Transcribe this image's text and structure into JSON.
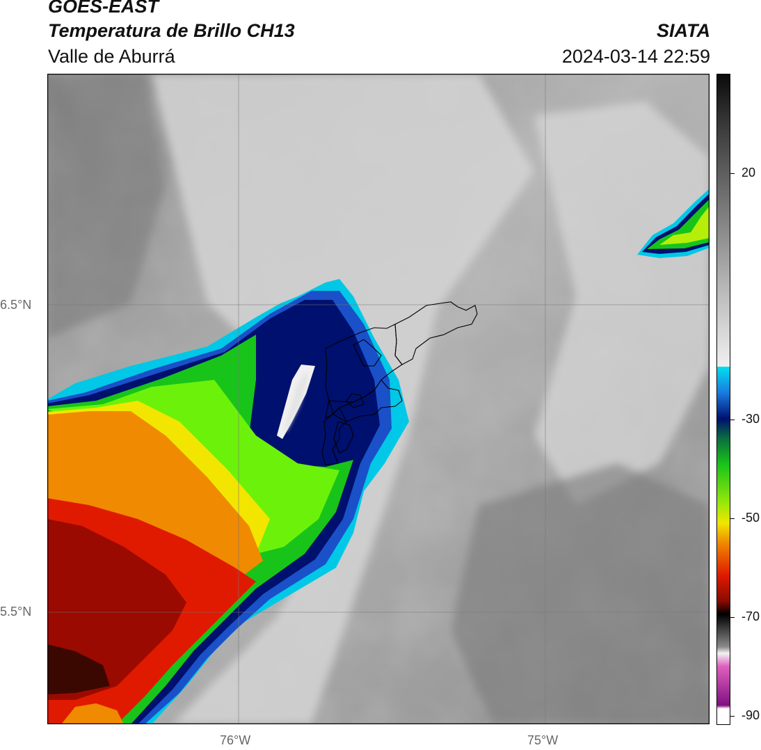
{
  "header": {
    "satellite": "GOES-EAST",
    "product": "Temperatura de Brillo CH13",
    "region": "Valle de Aburrá",
    "org": "SIATA",
    "timestamp": "2024-03-14 22:59"
  },
  "axes": {
    "lat_labels": [
      "6.5°N",
      "5.5°N"
    ],
    "lon_labels": [
      "76°W",
      "75°W"
    ]
  },
  "colorbar": {
    "ticks": [
      "20",
      "-30",
      "-50",
      "-70",
      "-90"
    ]
  },
  "colors": {
    "cold_top_dark": "#000080",
    "warm_gray": "#9a9a9a",
    "boundary": "#000000"
  }
}
